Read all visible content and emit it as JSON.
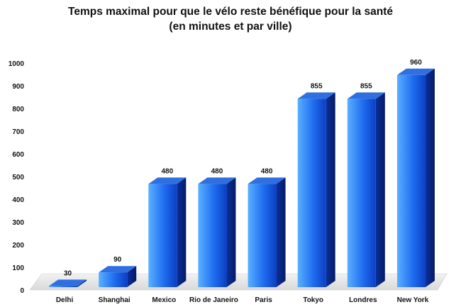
{
  "chart_data": {
    "type": "bar",
    "title": "Temps maximal pour que le vélo reste bénéfique pour la santé",
    "subtitle": "(en minutes et par ville)",
    "xlabel": "",
    "ylabel": "",
    "categories": [
      "Delhi",
      "Shanghai",
      "Mexico",
      "Rio de Janeiro",
      "Paris",
      "Tokyo",
      "Londres",
      "New York"
    ],
    "values": [
      30,
      90,
      480,
      480,
      480,
      855,
      855,
      960
    ],
    "ylim": [
      0,
      1000
    ],
    "yticks": [
      0,
      100,
      200,
      300,
      400,
      500,
      600,
      700,
      800,
      900,
      1000
    ],
    "grid": false,
    "legend": "none",
    "style": "3d-column",
    "colors": {
      "bar_front_light": "#4aa6ff",
      "bar_front_dark": "#0a47d6",
      "bar_side": "#0a2a8c",
      "bar_top": "#2f6fe0",
      "floor": "#e8e8e8"
    }
  }
}
